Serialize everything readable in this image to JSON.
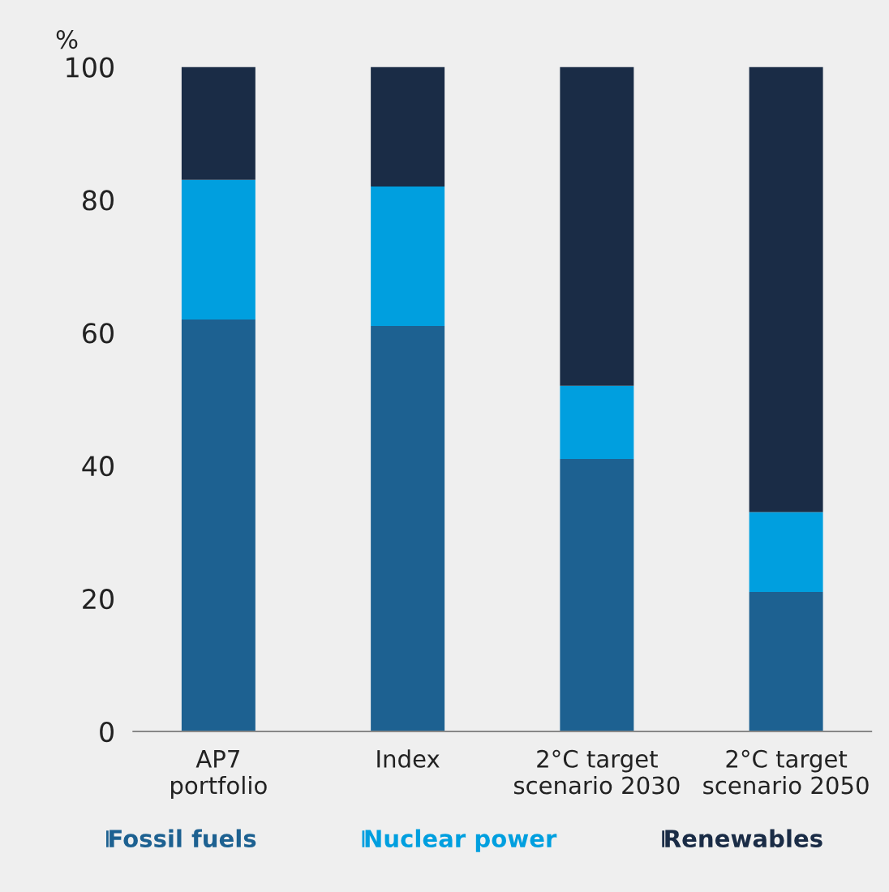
{
  "chart_data": {
    "type": "bar",
    "stacked": true,
    "ylabel": "%",
    "categories": [
      "AP7\nportfolio",
      "Index",
      "2°C target\nscenario 2030",
      "2°C target\nscenario 2050"
    ],
    "series": [
      {
        "name": "Fossil fuels",
        "color": "#1d6191",
        "values": [
          62,
          61,
          41,
          21
        ]
      },
      {
        "name": "Nuclear power",
        "color": "#009fdf",
        "values": [
          21,
          21,
          11,
          12
        ]
      },
      {
        "name": "Renewables",
        "color": "#1a2c46",
        "values": [
          17,
          18,
          48,
          67
        ]
      }
    ],
    "ylim": [
      0,
      100
    ],
    "yticks": [
      0,
      20,
      40,
      60,
      80,
      100
    ],
    "grid": false,
    "legend": "bottom"
  }
}
